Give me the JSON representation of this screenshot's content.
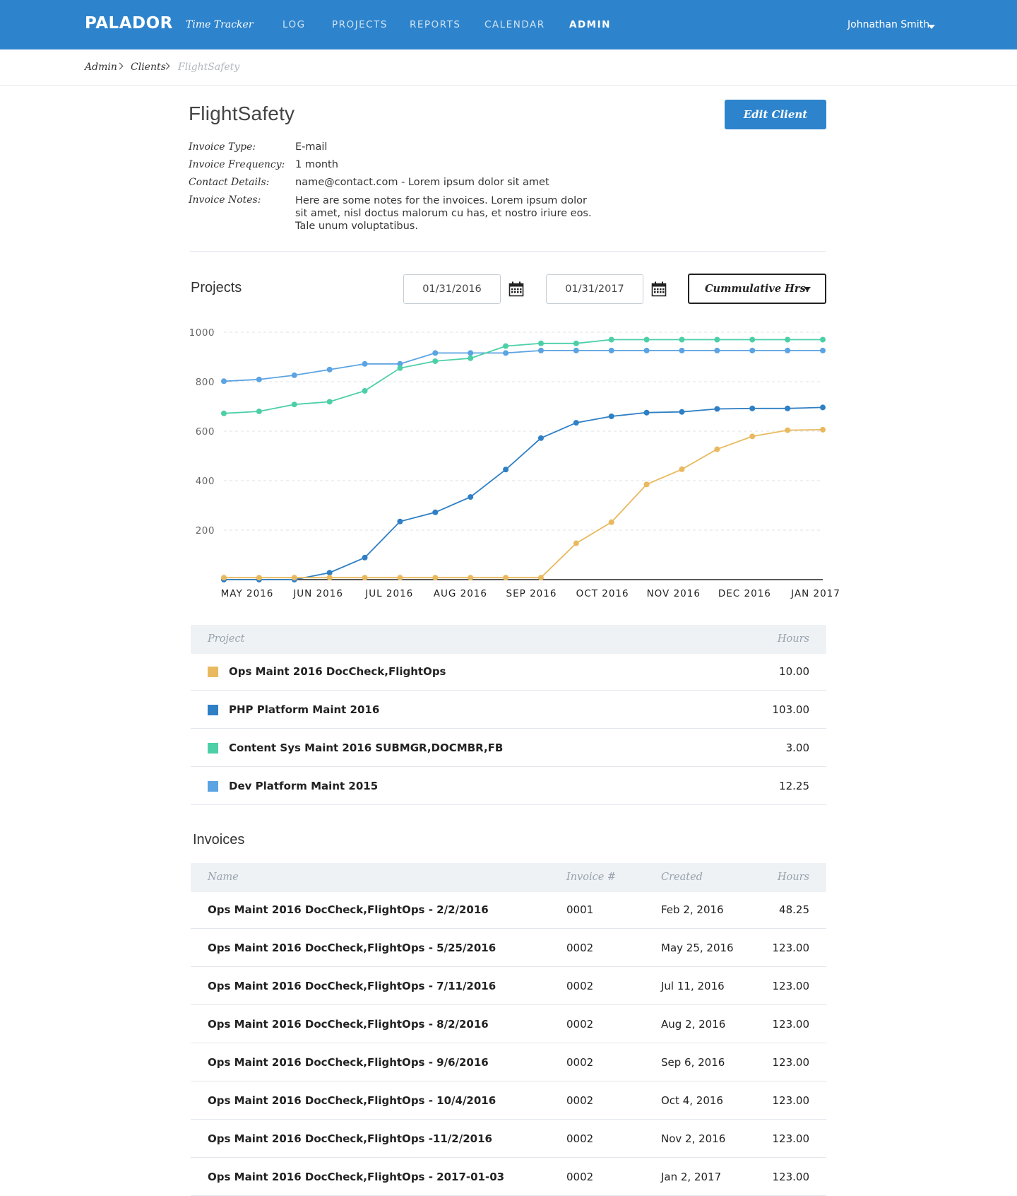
{
  "header": {
    "logo": "PALADOR",
    "product": "Time Tracker",
    "nav": [
      "LOG",
      "PROJECTS",
      "REPORTS",
      "CALENDAR",
      "ADMIN"
    ],
    "active_nav": "ADMIN",
    "user": "Johnathan Smith"
  },
  "breadcrumb": [
    "Admin",
    "Clients",
    "FlightSafety"
  ],
  "client": {
    "name": "FlightSafety",
    "edit_label": "Edit Client",
    "details": [
      {
        "label": "Invoice Type:",
        "value": "E-mail"
      },
      {
        "label": "Invoice Frequency:",
        "value": "1 month"
      },
      {
        "label": "Contact Details:",
        "value": "name@contact.com - Lorem ipsum dolor sit amet"
      },
      {
        "label": "Invoice Notes:",
        "value": "Here are some notes for the invoices. Lorem ipsum dolor sit amet, nisl doctus malorum cu has, et nostro iriure eos. Tale unum voluptatibus."
      }
    ]
  },
  "projects": {
    "title": "Projects",
    "start_date": "01/31/2016",
    "end_date": "01/31/2017",
    "metric": "Cummulative Hrs.",
    "columns": {
      "project": "Project",
      "hours": "Hours"
    },
    "rows": [
      {
        "name": "Ops Maint 2016 DocCheck,FlightOps",
        "hours": "10.00",
        "color": "#e9b95f"
      },
      {
        "name": "PHP Platform Maint 2016",
        "hours": "103.00",
        "color": "#2f7fc4"
      },
      {
        "name": "Content Sys Maint 2016 SUBMGR,DOCMBR,FB",
        "hours": "3.00",
        "color": "#4ccfa7"
      },
      {
        "name": "Dev Platform Maint 2015",
        "hours": "12.25",
        "color": "#5ba3e3"
      }
    ]
  },
  "chart_data": {
    "type": "line",
    "x_labels": [
      "MAY 2016",
      "JUN 2016",
      "JUL 2016",
      "AUG 2016",
      "SEP 2016",
      "OCT 2016",
      "NOV 2016",
      "DEC 2016",
      "JAN 2017"
    ],
    "ylim": [
      0,
      1000
    ],
    "yticks": [
      "200",
      "400",
      "600",
      "800",
      "1000"
    ],
    "grid": true,
    "series": [
      {
        "name": "Dev Platform Maint 2015",
        "color": "#5ba3e3",
        "values": [
          802,
          809,
          826,
          849,
          872,
          872,
          916,
          916,
          916,
          926,
          926,
          926,
          926,
          926,
          926,
          926,
          926,
          926
        ]
      },
      {
        "name": "Content Sys Maint 2016 SUBMGR,DOCMBR,FB",
        "color": "#4ccfa7",
        "values": [
          672,
          680,
          708,
          719,
          763,
          855,
          883,
          895,
          944,
          955,
          955,
          970,
          970,
          970,
          970,
          970,
          970,
          970
        ]
      },
      {
        "name": "PHP Platform Maint 2016",
        "color": "#2f7fc4",
        "values": [
          0,
          0,
          0,
          28,
          89,
          235,
          272,
          334,
          445,
          572,
          634,
          660,
          675,
          678,
          690,
          692,
          692,
          696
        ]
      },
      {
        "name": "Ops Maint 2016 DocCheck,FlightOps",
        "color": "#e9b95f",
        "values": [
          8,
          8,
          8,
          8,
          8,
          8,
          8,
          8,
          8,
          8,
          147,
          232,
          385,
          446,
          527,
          579,
          604,
          606
        ]
      }
    ]
  },
  "invoices": {
    "title": "Invoices",
    "columns": {
      "name": "Name",
      "number": "Invoice #",
      "created": "Created",
      "hours": "Hours"
    },
    "rows": [
      {
        "name": "Ops Maint 2016 DocCheck,FlightOps - 2/2/2016",
        "number": "0001",
        "created": "Feb 2, 2016",
        "hours": "48.25"
      },
      {
        "name": "Ops Maint 2016 DocCheck,FlightOps - 5/25/2016",
        "number": "0002",
        "created": "May 25, 2016",
        "hours": "123.00"
      },
      {
        "name": "Ops Maint 2016 DocCheck,FlightOps - 7/11/2016",
        "number": "0002",
        "created": "Jul 11, 2016",
        "hours": "123.00"
      },
      {
        "name": "Ops Maint 2016 DocCheck,FlightOps - 8/2/2016",
        "number": "0002",
        "created": "Aug 2, 2016",
        "hours": "123.00"
      },
      {
        "name": "Ops Maint 2016 DocCheck,FlightOps - 9/6/2016",
        "number": "0002",
        "created": "Sep 6, 2016",
        "hours": "123.00"
      },
      {
        "name": "Ops Maint 2016 DocCheck,FlightOps - 10/4/2016",
        "number": "0002",
        "created": "Oct 4, 2016",
        "hours": "123.00"
      },
      {
        "name": "Ops Maint 2016 DocCheck,FlightOps -11/2/2016",
        "number": "0002",
        "created": "Nov 2, 2016",
        "hours": "123.00"
      },
      {
        "name": "Ops Maint 2016 DocCheck,FlightOps - 2017-01-03",
        "number": "0002",
        "created": "Jan 2, 2017",
        "hours": "123.00"
      }
    ]
  }
}
